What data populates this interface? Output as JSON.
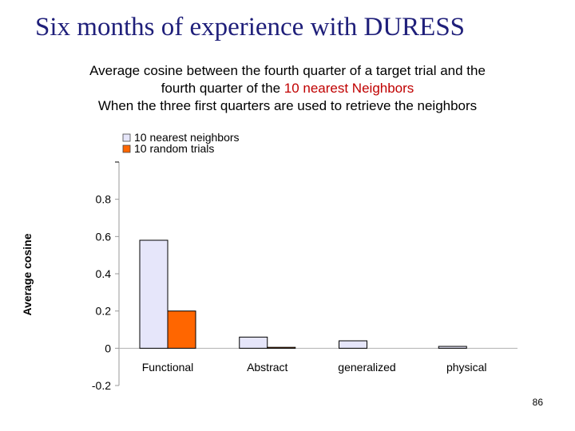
{
  "slide": {
    "title": "Six months of experience with DURESS",
    "subtitle_line1": "Average cosine between the fourth quarter of a target trial and the",
    "subtitle_line2_prefix": "fourth quarter of the ",
    "subtitle_line2_highlight": "10 nearest Neighbors",
    "subtitle_line3": "When the three first quarters are used to retrieve the neighbors",
    "page_number": "86"
  },
  "chart_data": {
    "type": "bar",
    "categories": [
      "Functional",
      "Abstract",
      "generalized",
      "physical"
    ],
    "series": [
      {
        "name": "10 nearest neighbors",
        "values": [
          0.58,
          0.06,
          0.04,
          0.01
        ],
        "color": "#e6e6fa"
      },
      {
        "name": "10 random trials",
        "values": [
          0.2,
          0.005,
          0.0,
          0.0
        ],
        "color": "#ff6600"
      }
    ],
    "title": "",
    "xlabel": "",
    "ylabel": "Average cosine",
    "ylim": [
      -0.2,
      1.0
    ],
    "yticks": [
      -0.2,
      0,
      0.2,
      0.4,
      0.6,
      0.8
    ],
    "legend_position": "top-left",
    "grid": false,
    "bar_outline_color": "#000000"
  }
}
